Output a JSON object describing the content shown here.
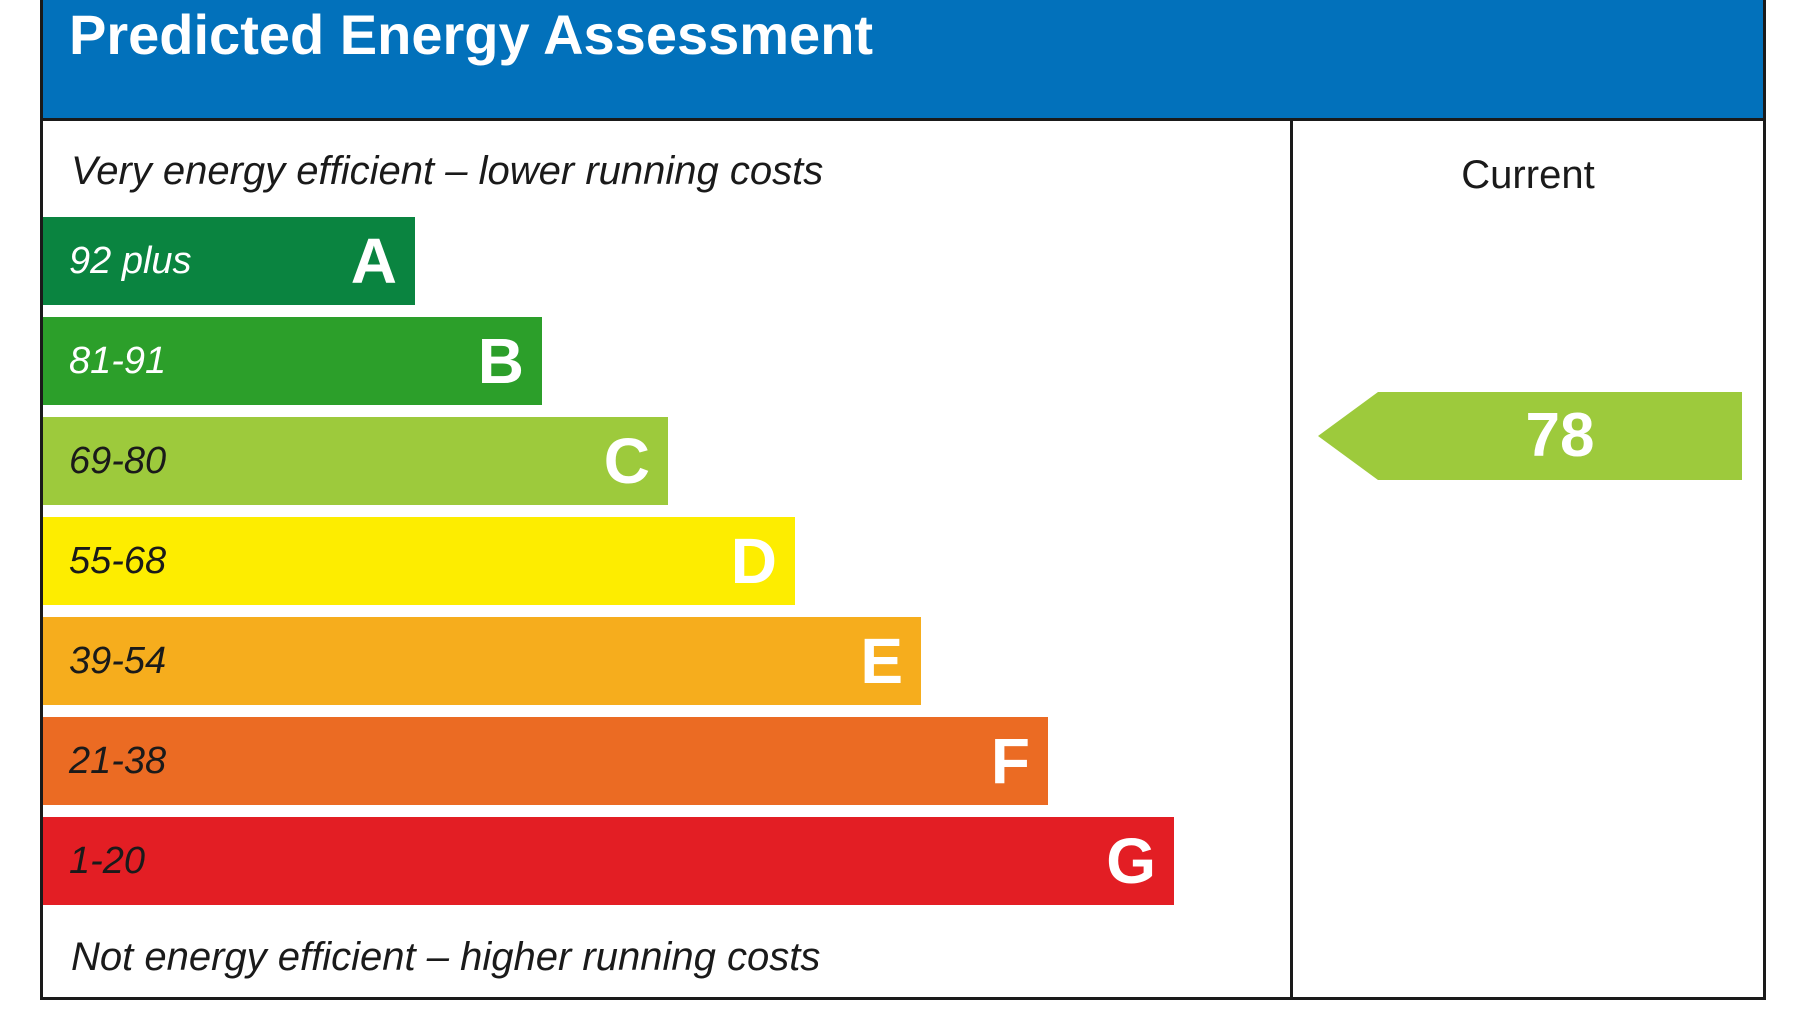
{
  "chart_data": {
    "type": "bar",
    "title": "Predicted Energy Assessment",
    "top_caption": "Very energy efficient – lower running costs",
    "bottom_caption": "Not energy efficient – higher running costs",
    "column_header": "Current",
    "bands": [
      {
        "range": "92 plus",
        "letter": "A",
        "color": "#0a8440",
        "text_color": "#ffffff"
      },
      {
        "range": "81-91",
        "letter": "B",
        "color": "#2c9f2a",
        "text_color": "#ffffff"
      },
      {
        "range": "69-80",
        "letter": "C",
        "color": "#9dca3c",
        "text_color": "#1a1a1a"
      },
      {
        "range": "55-68",
        "letter": "D",
        "color": "#fded00",
        "text_color": "#1a1a1a"
      },
      {
        "range": "39-54",
        "letter": "E",
        "color": "#f6ad1d",
        "text_color": "#1a1a1a"
      },
      {
        "range": "21-38",
        "letter": "F",
        "color": "#eb6b23",
        "text_color": "#1a1a1a"
      },
      {
        "range": "1-20",
        "letter": "G",
        "color": "#e31e24",
        "text_color": "#1a1a1a"
      }
    ],
    "current": {
      "value": "78",
      "band": "C",
      "color": "#9dca3c"
    }
  },
  "colors": {
    "header": "#0271bb",
    "border": "#1a1a1a"
  }
}
